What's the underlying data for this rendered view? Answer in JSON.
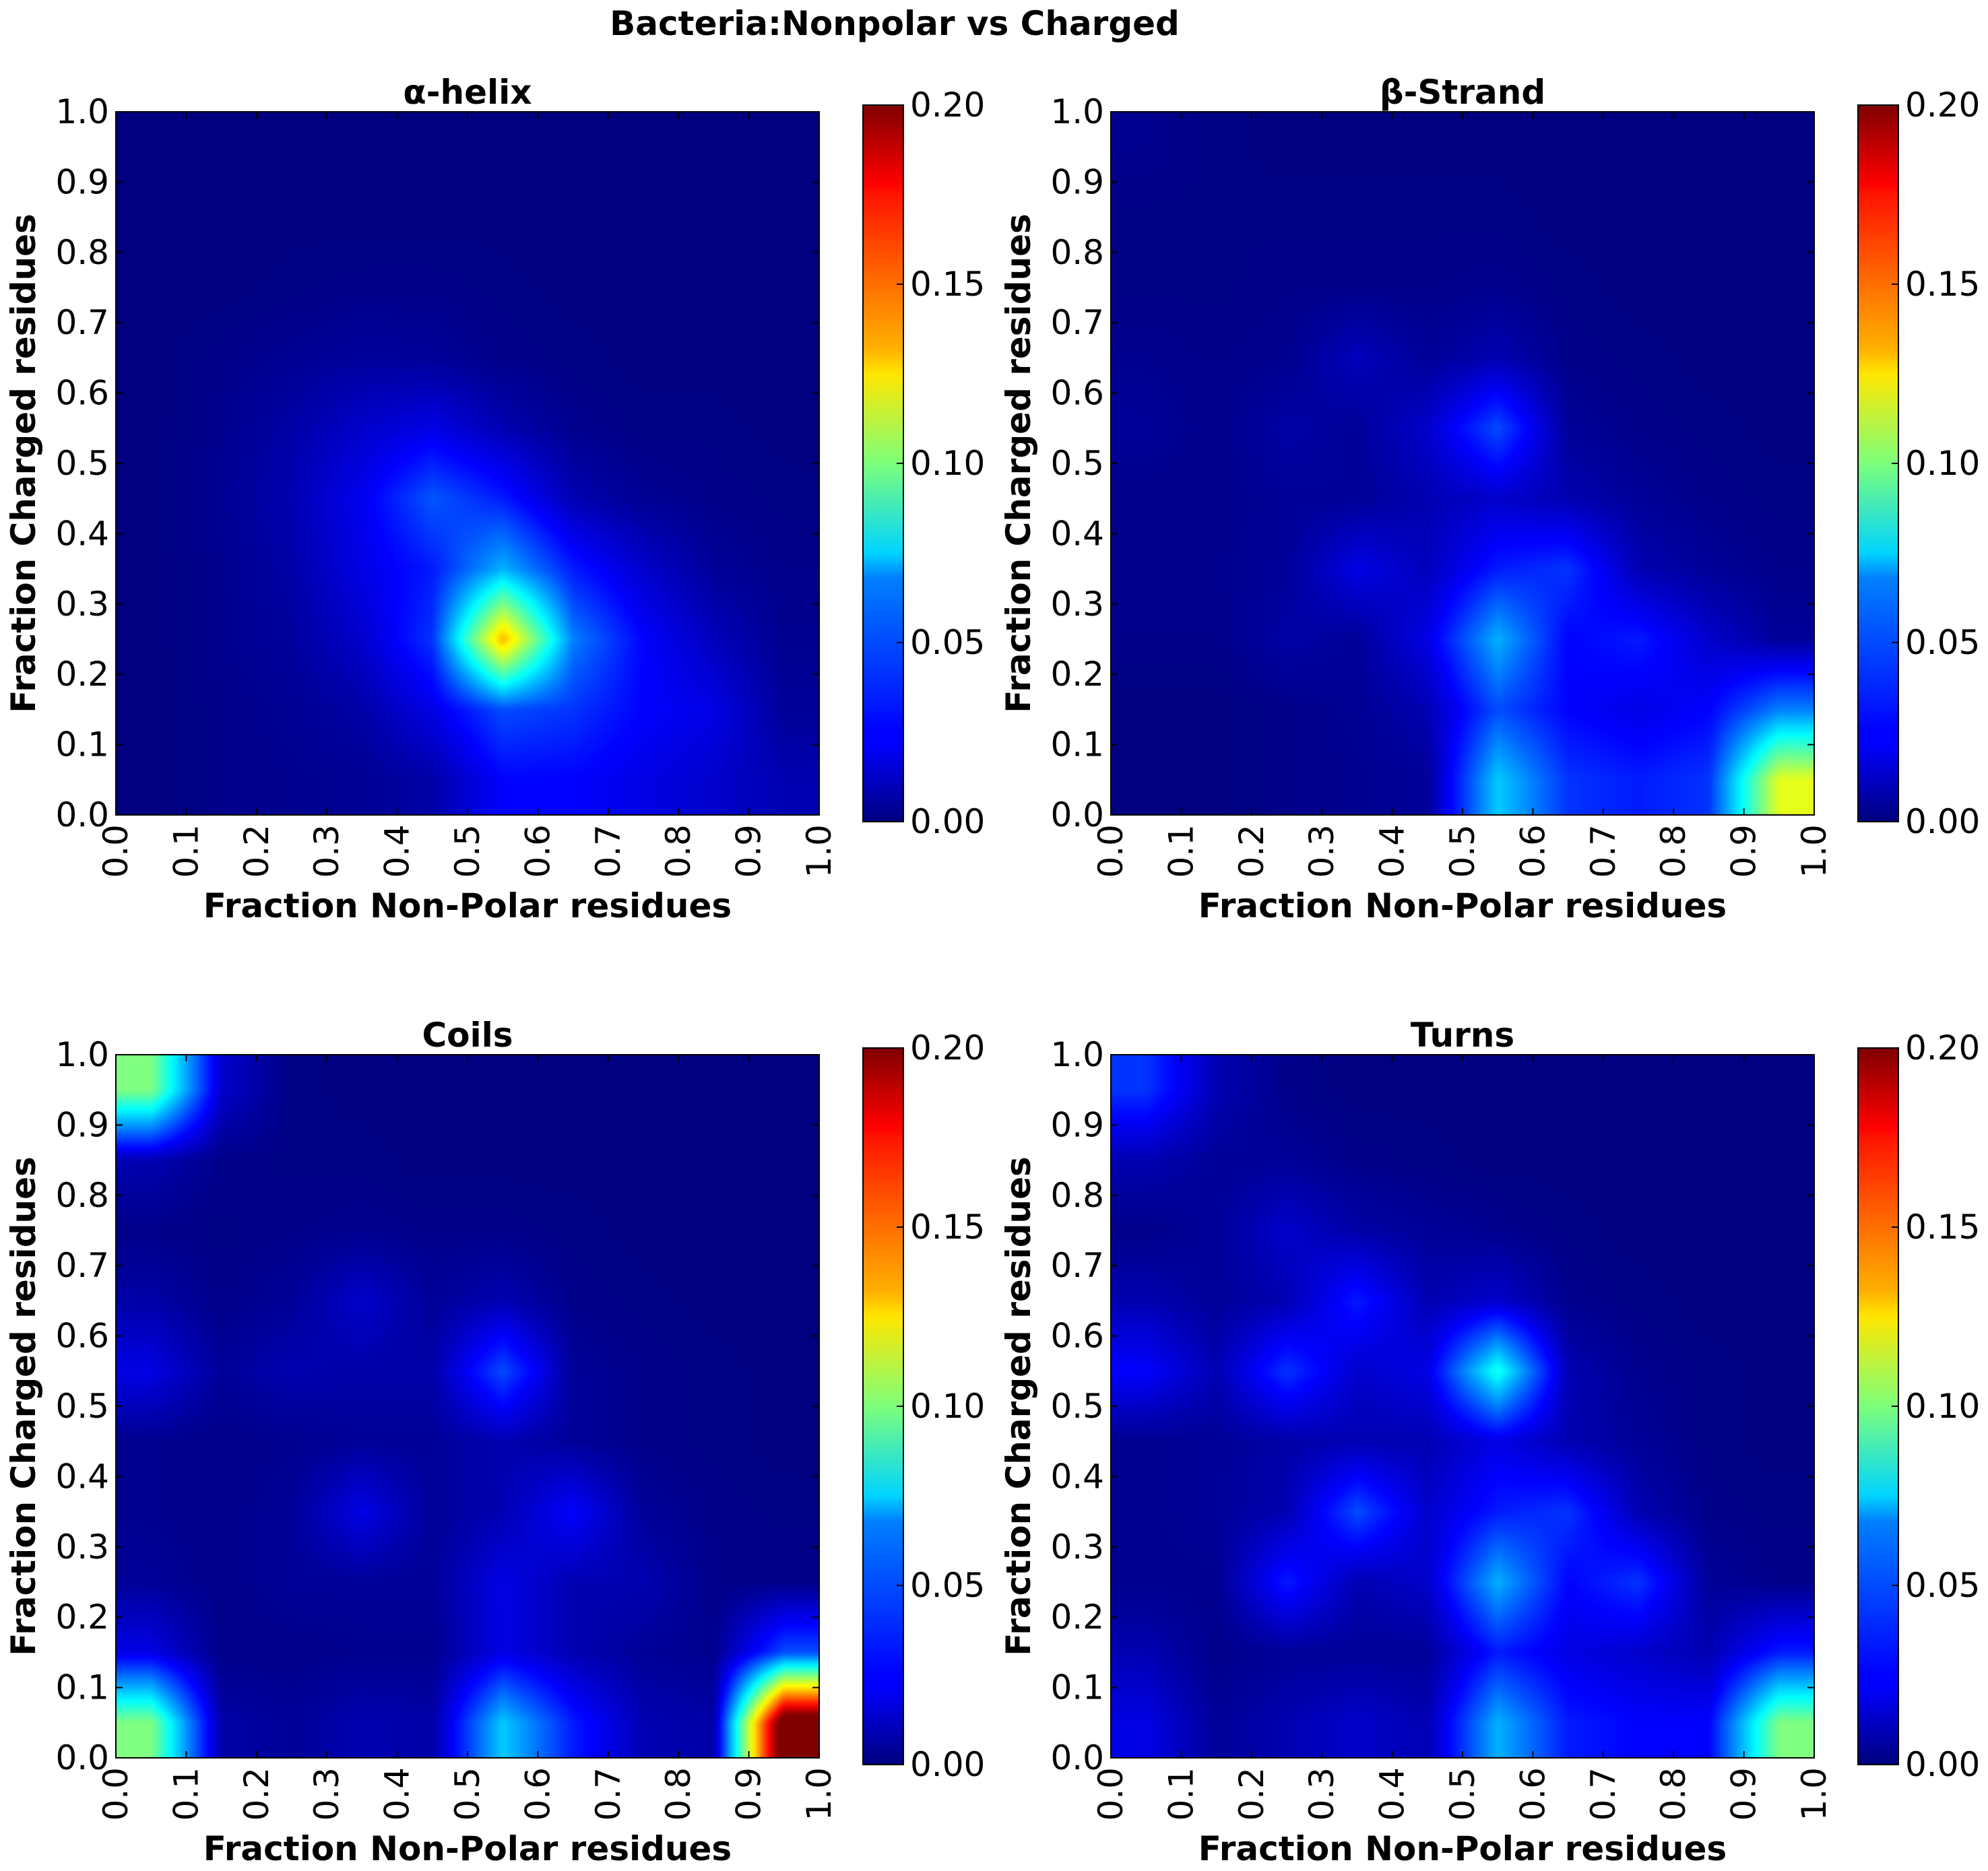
{
  "figure": {
    "suptitle": "Bacteria:Nonpolar vs Charged"
  },
  "chart_data": [
    {
      "type": "heatmap",
      "title": "α-helix",
      "xlabel": "Fraction Non-Polar residues",
      "ylabel": "Fraction Charged residues",
      "xlim": [
        0.0,
        1.0
      ],
      "ylim": [
        0.0,
        1.0
      ],
      "x_ticks": [
        "0.0",
        "0.1",
        "0.2",
        "0.3",
        "0.4",
        "0.5",
        "0.6",
        "0.7",
        "0.8",
        "0.9",
        "1.0"
      ],
      "y_ticks": [
        "0.0",
        "0.1",
        "0.2",
        "0.3",
        "0.4",
        "0.5",
        "0.6",
        "0.7",
        "0.8",
        "0.9",
        "1.0"
      ],
      "colorbar": {
        "min": 0.0,
        "max": 0.2,
        "ticks": [
          "0.00",
          "0.05",
          "0.10",
          "0.15",
          "0.20"
        ],
        "colormap": "jet"
      },
      "grid_centers": [
        0.05,
        0.15,
        0.25,
        0.35,
        0.45,
        0.55,
        0.65,
        0.75,
        0.85,
        0.95
      ],
      "values": [
        [
          0.0,
          0.002,
          0.003,
          0.004,
          0.008,
          0.025,
          0.025,
          0.02,
          0.015,
          0.01
        ],
        [
          0.0,
          0.002,
          0.004,
          0.008,
          0.02,
          0.04,
          0.035,
          0.025,
          0.02,
          0.005
        ],
        [
          0.0,
          0.003,
          0.006,
          0.015,
          0.035,
          0.14,
          0.05,
          0.025,
          0.012,
          0.003
        ],
        [
          0.0,
          0.003,
          0.008,
          0.02,
          0.03,
          0.06,
          0.03,
          0.015,
          0.005,
          0.002
        ],
        [
          0.0,
          0.004,
          0.01,
          0.022,
          0.042,
          0.03,
          0.01,
          0.004,
          0.002,
          0.001
        ],
        [
          0.0,
          0.003,
          0.008,
          0.015,
          0.02,
          0.01,
          0.003,
          0.001,
          0.001,
          0.0
        ],
        [
          0.0,
          0.002,
          0.004,
          0.006,
          0.005,
          0.002,
          0.001,
          0.0,
          0.0,
          0.0
        ],
        [
          0.0,
          0.0,
          0.001,
          0.002,
          0.002,
          0.001,
          0.0,
          0.0,
          0.0,
          0.0
        ],
        [
          0.0,
          0.0,
          0.0,
          0.0,
          0.0,
          0.0,
          0.0,
          0.0,
          0.0,
          0.0
        ],
        [
          0.0,
          0.0,
          0.0,
          0.0,
          0.0,
          0.0,
          0.0,
          0.0,
          0.0,
          0.0
        ]
      ]
    },
    {
      "type": "heatmap",
      "title": "β-Strand",
      "xlabel": "Fraction Non-Polar residues",
      "ylabel": "Fraction Charged residues",
      "xlim": [
        0.0,
        1.0
      ],
      "ylim": [
        0.0,
        1.0
      ],
      "x_ticks": [
        "0.0",
        "0.1",
        "0.2",
        "0.3",
        "0.4",
        "0.5",
        "0.6",
        "0.7",
        "0.8",
        "0.9",
        "1.0"
      ],
      "y_ticks": [
        "0.0",
        "0.1",
        "0.2",
        "0.3",
        "0.4",
        "0.5",
        "0.6",
        "0.7",
        "0.8",
        "0.9",
        "1.0"
      ],
      "colorbar": {
        "min": 0.0,
        "max": 0.2,
        "ticks": [
          "0.00",
          "0.05",
          "0.10",
          "0.15",
          "0.20"
        ],
        "colormap": "jet"
      },
      "grid_centers": [
        0.05,
        0.15,
        0.25,
        0.35,
        0.45,
        0.55,
        0.65,
        0.75,
        0.85,
        0.95
      ],
      "values": [
        [
          0.0,
          0.0,
          0.002,
          0.003,
          0.005,
          0.065,
          0.035,
          0.03,
          0.035,
          0.12
        ],
        [
          0.0,
          0.0,
          0.002,
          0.004,
          0.01,
          0.04,
          0.025,
          0.02,
          0.025,
          0.05
        ],
        [
          0.002,
          0.002,
          0.008,
          0.005,
          0.02,
          0.06,
          0.025,
          0.03,
          0.015,
          0.005
        ],
        [
          0.002,
          0.003,
          0.005,
          0.02,
          0.012,
          0.03,
          0.035,
          0.01,
          0.005,
          0.002
        ],
        [
          0.002,
          0.002,
          0.005,
          0.005,
          0.01,
          0.015,
          0.01,
          0.005,
          0.002,
          0.001
        ],
        [
          0.005,
          0.002,
          0.008,
          0.005,
          0.015,
          0.04,
          0.005,
          0.002,
          0.001,
          0.0
        ],
        [
          0.003,
          0.002,
          0.003,
          0.012,
          0.005,
          0.01,
          0.002,
          0.001,
          0.0,
          0.0
        ],
        [
          0.001,
          0.001,
          0.002,
          0.002,
          0.002,
          0.003,
          0.001,
          0.0,
          0.0,
          0.0
        ],
        [
          0.001,
          0.001,
          0.001,
          0.001,
          0.001,
          0.001,
          0.0,
          0.0,
          0.0,
          0.0
        ],
        [
          0.003,
          0.001,
          0.0,
          0.0,
          0.0,
          0.0,
          0.0,
          0.0,
          0.0,
          0.0
        ]
      ]
    },
    {
      "type": "heatmap",
      "title": "Coils",
      "xlabel": "Fraction Non-Polar residues",
      "ylabel": "Fraction Charged residues",
      "xlim": [
        0.0,
        1.0
      ],
      "ylim": [
        0.0,
        1.0
      ],
      "x_ticks": [
        "0.0",
        "0.1",
        "0.2",
        "0.3",
        "0.4",
        "0.5",
        "0.6",
        "0.7",
        "0.8",
        "0.9",
        "1.0"
      ],
      "y_ticks": [
        "0.0",
        "0.1",
        "0.2",
        "0.3",
        "0.4",
        "0.5",
        "0.6",
        "0.7",
        "0.8",
        "0.9",
        "1.0"
      ],
      "colorbar": {
        "min": 0.0,
        "max": 0.2,
        "ticks": [
          "0.00",
          "0.05",
          "0.10",
          "0.15",
          "0.20"
        ],
        "colormap": "jet"
      },
      "grid_centers": [
        0.05,
        0.15,
        0.25,
        0.35,
        0.45,
        0.55,
        0.65,
        0.75,
        0.85,
        0.95
      ],
      "values": [
        [
          0.1,
          0.008,
          0.005,
          0.01,
          0.008,
          0.065,
          0.03,
          0.01,
          0.008,
          0.22
        ],
        [
          0.02,
          0.002,
          0.002,
          0.003,
          0.003,
          0.02,
          0.01,
          0.005,
          0.003,
          0.04
        ],
        [
          0.005,
          0.002,
          0.005,
          0.005,
          0.005,
          0.02,
          0.01,
          0.01,
          0.002,
          0.002
        ],
        [
          0.003,
          0.002,
          0.005,
          0.02,
          0.005,
          0.01,
          0.025,
          0.005,
          0.002,
          0.001
        ],
        [
          0.003,
          0.002,
          0.003,
          0.005,
          0.005,
          0.01,
          0.005,
          0.002,
          0.001,
          0.0
        ],
        [
          0.02,
          0.005,
          0.01,
          0.008,
          0.008,
          0.04,
          0.005,
          0.002,
          0.001,
          0.0
        ],
        [
          0.008,
          0.002,
          0.005,
          0.015,
          0.005,
          0.01,
          0.002,
          0.001,
          0.0,
          0.0
        ],
        [
          0.002,
          0.001,
          0.002,
          0.003,
          0.002,
          0.002,
          0.001,
          0.0,
          0.0,
          0.0
        ],
        [
          0.01,
          0.002,
          0.001,
          0.001,
          0.0,
          0.0,
          0.0,
          0.0,
          0.0,
          0.0
        ],
        [
          0.1,
          0.015,
          0.001,
          0.0,
          0.0,
          0.0,
          0.0,
          0.0,
          0.0,
          0.0
        ]
      ]
    },
    {
      "type": "heatmap",
      "title": "Turns",
      "xlabel": "Fraction Non-Polar residues",
      "ylabel": "Fraction Charged residues",
      "xlim": [
        0.0,
        1.0
      ],
      "ylim": [
        0.0,
        1.0
      ],
      "x_ticks": [
        "0.0",
        "0.1",
        "0.2",
        "0.3",
        "0.4",
        "0.5",
        "0.6",
        "0.7",
        "0.8",
        "0.9",
        "1.0"
      ],
      "y_ticks": [
        "0.0",
        "0.1",
        "0.2",
        "0.3",
        "0.4",
        "0.5",
        "0.6",
        "0.7",
        "0.8",
        "0.9",
        "1.0"
      ],
      "colorbar": {
        "min": 0.0,
        "max": 0.2,
        "ticks": [
          "0.00",
          "0.05",
          "0.10",
          "0.15",
          "0.20"
        ],
        "colormap": "jet"
      },
      "grid_centers": [
        0.05,
        0.15,
        0.25,
        0.35,
        0.45,
        0.55,
        0.65,
        0.75,
        0.85,
        0.95
      ],
      "values": [
        [
          0.02,
          0.005,
          0.01,
          0.015,
          0.01,
          0.06,
          0.03,
          0.025,
          0.025,
          0.1
        ],
        [
          0.01,
          0.002,
          0.005,
          0.005,
          0.005,
          0.03,
          0.02,
          0.015,
          0.01,
          0.03
        ],
        [
          0.003,
          0.003,
          0.03,
          0.01,
          0.015,
          0.06,
          0.025,
          0.035,
          0.005,
          0.002
        ],
        [
          0.003,
          0.005,
          0.01,
          0.04,
          0.015,
          0.03,
          0.035,
          0.01,
          0.002,
          0.001
        ],
        [
          0.003,
          0.005,
          0.008,
          0.01,
          0.01,
          0.02,
          0.01,
          0.005,
          0.001,
          0.0
        ],
        [
          0.025,
          0.01,
          0.035,
          0.015,
          0.02,
          0.08,
          0.01,
          0.003,
          0.001,
          0.0
        ],
        [
          0.01,
          0.005,
          0.01,
          0.03,
          0.01,
          0.015,
          0.003,
          0.001,
          0.0,
          0.0
        ],
        [
          0.002,
          0.005,
          0.015,
          0.008,
          0.005,
          0.003,
          0.001,
          0.0,
          0.0,
          0.0
        ],
        [
          0.01,
          0.005,
          0.005,
          0.002,
          0.001,
          0.0,
          0.0,
          0.0,
          0.0,
          0.0
        ],
        [
          0.035,
          0.01,
          0.002,
          0.0,
          0.0,
          0.0,
          0.0,
          0.0,
          0.0,
          0.0
        ]
      ]
    }
  ]
}
